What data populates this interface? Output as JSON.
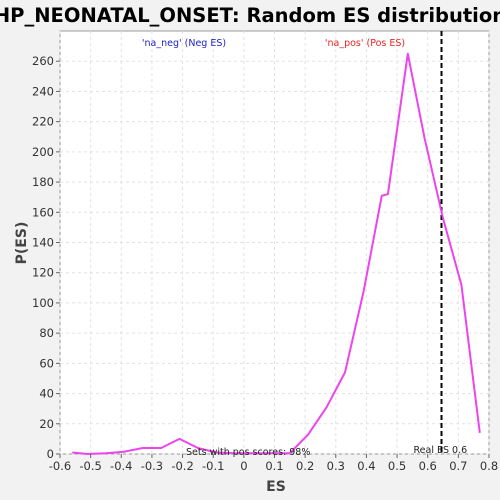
{
  "chart_data": {
    "type": "line",
    "title": "HP_NEONATAL_ONSET: Random ES distribution",
    "xlabel": "ES",
    "ylabel": "P(ES)",
    "xlim": [
      -0.6,
      0.8
    ],
    "ylim": [
      0,
      280
    ],
    "x_ticks": [
      -0.6,
      -0.5,
      -0.4,
      -0.3,
      -0.2,
      -0.1,
      0,
      0.1,
      0.2,
      0.3,
      0.4,
      0.5,
      0.6,
      0.7,
      0.8
    ],
    "x_tick_labels": [
      "-0.6",
      "-0.5",
      "-0.4",
      "-0.3",
      "-0.2",
      "-0.1",
      "0",
      "0.1",
      "0.2",
      "0.3",
      "0.4",
      "0.5",
      "0.6",
      "0.7",
      "0.8"
    ],
    "y_ticks": [
      0,
      20,
      40,
      60,
      80,
      100,
      120,
      140,
      160,
      180,
      200,
      220,
      240,
      260
    ],
    "y_tick_labels": [
      "0",
      "20",
      "40",
      "60",
      "80",
      "100",
      "120",
      "140",
      "160",
      "180",
      "200",
      "220",
      "240",
      "260"
    ],
    "grid": true,
    "series": [
      {
        "color": "#ee44ee",
        "x": [
          -0.56,
          -0.51,
          -0.45,
          -0.39,
          -0.33,
          -0.27,
          -0.21,
          -0.15,
          -0.09,
          -0.03,
          0.03,
          0.09,
          0.15,
          0.21,
          0.27,
          0.33,
          0.39,
          0.45,
          0.47,
          0.535,
          0.59,
          0.65,
          0.71,
          0.77
        ],
        "values": [
          1,
          0,
          0.5,
          1.5,
          4,
          4,
          10,
          4,
          1,
          0.5,
          0.5,
          0.5,
          0.5,
          13,
          31,
          54,
          107,
          171,
          172,
          265,
          209,
          156,
          112,
          14
        ]
      }
    ],
    "legend": [
      {
        "label": "'na_neg' (Neg ES)",
        "color": "#2222cc"
      },
      {
        "label": "'na_pos' (Pos ES)",
        "color": "#ee2222"
      }
    ],
    "reference_line": {
      "x": 0.645,
      "style": "dashed",
      "color": "#000000",
      "label": "Real ES 0.6"
    },
    "annotation": "Sets with pos scores: 98%"
  }
}
